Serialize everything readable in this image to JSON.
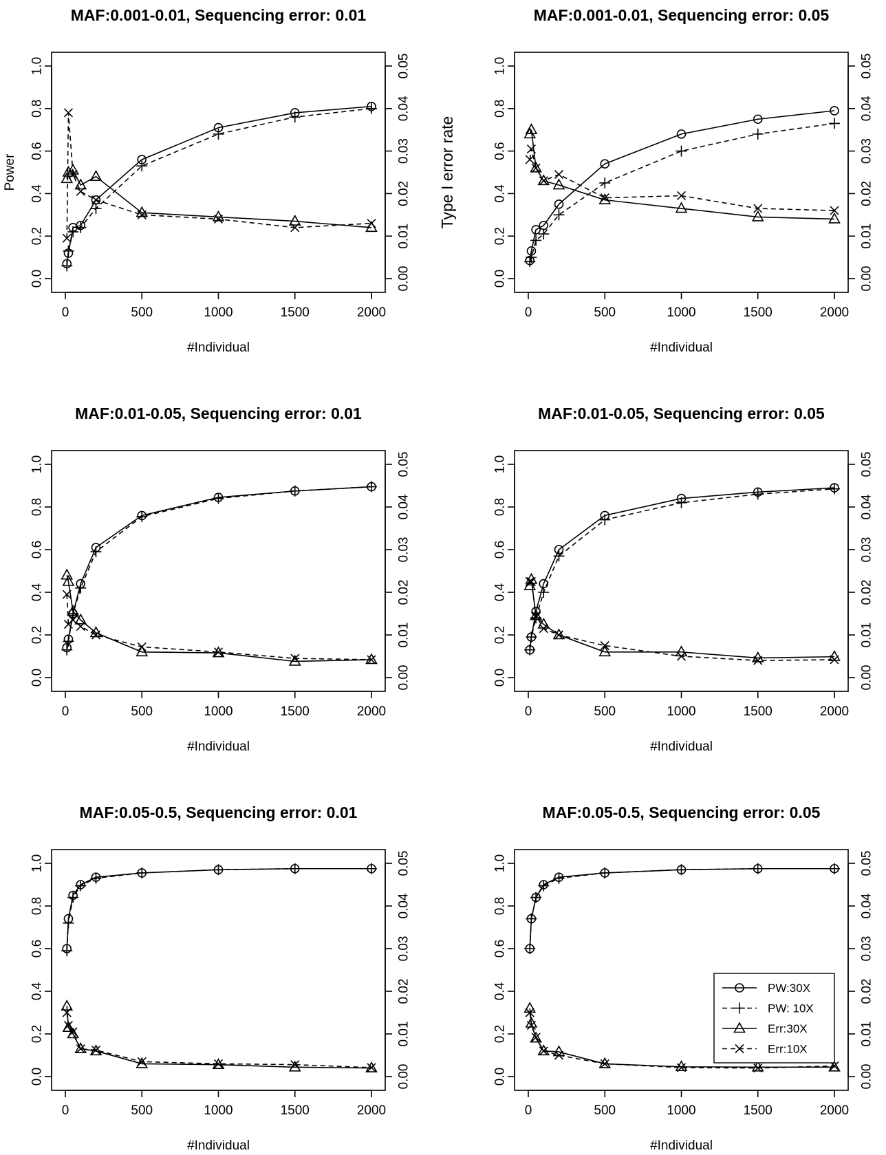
{
  "chart_data": [
    {
      "type": "line",
      "title": "MAF:0.001-0.01, Sequencing error: 0.01",
      "xlabel": "#Individual",
      "ylabel": "Power",
      "y2label": "Type I error rate",
      "x": [
        10,
        20,
        50,
        100,
        200,
        500,
        1000,
        1500,
        2000
      ],
      "xlim": [
        0,
        2000
      ],
      "xticks": [
        0,
        500,
        1000,
        1500,
        2000
      ],
      "ylim": [
        0,
        1
      ],
      "yticks": [
        "0.0",
        "0.2",
        "0.4",
        "0.6",
        "0.8",
        "1.0"
      ],
      "y2lim": [
        0,
        0.05
      ],
      "y2ticks": [
        "0.00",
        "0.01",
        "0.02",
        "0.03",
        "0.04",
        "0.05"
      ],
      "grid": false,
      "series": [
        {
          "name": "PW:30X",
          "axis": "left",
          "marker": "circle",
          "dash": "solid",
          "values": [
            0.07,
            0.12,
            0.24,
            0.25,
            0.37,
            0.56,
            0.71,
            0.78,
            0.81
          ]
        },
        {
          "name": "PW: 10X",
          "axis": "left",
          "marker": "plus",
          "dash": "dashed",
          "values": [
            0.06,
            0.13,
            0.22,
            0.24,
            0.33,
            0.53,
            0.68,
            0.76,
            0.8
          ]
        },
        {
          "name": "Err:30X",
          "axis": "right",
          "marker": "triangle",
          "dash": "solid",
          "values": [
            0.0235,
            0.025,
            0.0255,
            0.022,
            0.024,
            0.0155,
            0.0145,
            0.0135,
            0.012
          ]
        },
        {
          "name": "Err:10X",
          "axis": "right",
          "marker": "x",
          "dash": "dashed",
          "values": [
            0.0095,
            0.039,
            0.0245,
            0.0205,
            0.0185,
            0.015,
            0.014,
            0.012,
            0.013
          ]
        }
      ]
    },
    {
      "type": "line",
      "title": "MAF:0.001-0.01, Sequencing error: 0.05",
      "xlabel": "#Individual",
      "x": [
        10,
        20,
        50,
        100,
        200,
        500,
        1000,
        1500,
        2000
      ],
      "xlim": [
        0,
        2000
      ],
      "xticks": [
        0,
        500,
        1000,
        1500,
        2000
      ],
      "ylim": [
        0,
        1
      ],
      "yticks": [
        "0.0",
        "0.2",
        "0.4",
        "0.6",
        "0.8",
        "1.0"
      ],
      "y2lim": [
        0,
        0.05
      ],
      "y2ticks": [
        "0.00",
        "0.01",
        "0.02",
        "0.03",
        "0.04",
        "0.05"
      ],
      "grid": false,
      "series": [
        {
          "name": "PW:30X",
          "axis": "left",
          "marker": "circle",
          "dash": "solid",
          "values": [
            0.085,
            0.13,
            0.23,
            0.25,
            0.35,
            0.54,
            0.68,
            0.75,
            0.79
          ]
        },
        {
          "name": "PW: 10X",
          "axis": "left",
          "marker": "plus",
          "dash": "dashed",
          "values": [
            0.08,
            0.1,
            0.18,
            0.21,
            0.3,
            0.45,
            0.6,
            0.68,
            0.73
          ]
        },
        {
          "name": "Err:30X",
          "axis": "right",
          "marker": "triangle",
          "dash": "solid",
          "values": [
            0.034,
            0.035,
            0.026,
            0.023,
            0.022,
            0.0185,
            0.0165,
            0.0145,
            0.014
          ]
        },
        {
          "name": "Err:10X",
          "axis": "right",
          "marker": "x",
          "dash": "dashed",
          "values": [
            0.028,
            0.0305,
            0.026,
            0.023,
            0.0245,
            0.019,
            0.0195,
            0.0165,
            0.016
          ]
        }
      ]
    },
    {
      "type": "line",
      "title": "MAF:0.01-0.05, Sequencing error: 0.01",
      "xlabel": "#Individual",
      "x": [
        10,
        20,
        50,
        100,
        200,
        500,
        1000,
        1500,
        2000
      ],
      "xlim": [
        0,
        2000
      ],
      "xticks": [
        0,
        500,
        1000,
        1500,
        2000
      ],
      "ylim": [
        0,
        1
      ],
      "yticks": [
        "0.0",
        "0.2",
        "0.4",
        "0.6",
        "0.8",
        "1.0"
      ],
      "y2lim": [
        0,
        0.05
      ],
      "y2ticks": [
        "0.00",
        "0.01",
        "0.02",
        "0.03",
        "0.04",
        "0.05"
      ],
      "grid": false,
      "series": [
        {
          "name": "PW:30X",
          "axis": "left",
          "marker": "circle",
          "dash": "solid",
          "values": [
            0.14,
            0.18,
            0.3,
            0.44,
            0.61,
            0.76,
            0.845,
            0.875,
            0.895
          ]
        },
        {
          "name": "PW: 10X",
          "axis": "left",
          "marker": "plus",
          "dash": "dashed",
          "values": [
            0.13,
            0.17,
            0.3,
            0.42,
            0.59,
            0.755,
            0.84,
            0.875,
            0.895
          ]
        },
        {
          "name": "Err:30X",
          "axis": "right",
          "marker": "triangle",
          "dash": "solid",
          "values": [
            0.024,
            0.0225,
            0.0155,
            0.0135,
            0.0105,
            0.006,
            0.0058,
            0.0038,
            0.0042
          ]
        },
        {
          "name": "Err:10X",
          "axis": "right",
          "marker": "x",
          "dash": "dashed",
          "values": [
            0.0195,
            0.0125,
            0.0135,
            0.012,
            0.01,
            0.0072,
            0.006,
            0.0045,
            0.0042
          ]
        }
      ]
    },
    {
      "type": "line",
      "title": "MAF:0.01-0.05, Sequencing error: 0.05",
      "xlabel": "#Individual",
      "x": [
        10,
        20,
        50,
        100,
        200,
        500,
        1000,
        1500,
        2000
      ],
      "xlim": [
        0,
        2000
      ],
      "xticks": [
        0,
        500,
        1000,
        1500,
        2000
      ],
      "ylim": [
        0,
        1
      ],
      "yticks": [
        "0.0",
        "0.2",
        "0.4",
        "0.6",
        "0.8",
        "1.0"
      ],
      "y2lim": [
        0,
        0.05
      ],
      "y2ticks": [
        "0.00",
        "0.01",
        "0.02",
        "0.03",
        "0.04",
        "0.05"
      ],
      "grid": false,
      "series": [
        {
          "name": "PW:30X",
          "axis": "left",
          "marker": "circle",
          "dash": "solid",
          "values": [
            0.13,
            0.19,
            0.31,
            0.44,
            0.6,
            0.76,
            0.84,
            0.87,
            0.89
          ]
        },
        {
          "name": "PW: 10X",
          "axis": "left",
          "marker": "plus",
          "dash": "dashed",
          "values": [
            0.13,
            0.19,
            0.28,
            0.4,
            0.57,
            0.74,
            0.82,
            0.86,
            0.885
          ]
        },
        {
          "name": "Err:30X",
          "axis": "right",
          "marker": "triangle",
          "dash": "solid",
          "values": [
            0.0215,
            0.023,
            0.0145,
            0.0125,
            0.01,
            0.006,
            0.006,
            0.0046,
            0.0049
          ]
        },
        {
          "name": "Err:10X",
          "axis": "right",
          "marker": "x",
          "dash": "dashed",
          "values": [
            0.0225,
            0.0225,
            0.0145,
            0.0115,
            0.01,
            0.0075,
            0.005,
            0.004,
            0.0042
          ]
        }
      ]
    },
    {
      "type": "line",
      "title": "MAF:0.05-0.5, Sequencing error: 0.01",
      "xlabel": "#Individual",
      "x": [
        10,
        20,
        50,
        100,
        200,
        500,
        1000,
        1500,
        2000
      ],
      "xlim": [
        0,
        2000
      ],
      "xticks": [
        0,
        500,
        1000,
        1500,
        2000
      ],
      "ylim": [
        0,
        1
      ],
      "yticks": [
        "0.0",
        "0.2",
        "0.4",
        "0.6",
        "0.8",
        "1.0"
      ],
      "y2lim": [
        0,
        0.05
      ],
      "y2ticks": [
        "0.00",
        "0.01",
        "0.02",
        "0.03",
        "0.04",
        "0.05"
      ],
      "grid": false,
      "series": [
        {
          "name": "PW:30X",
          "axis": "left",
          "marker": "circle",
          "dash": "solid",
          "values": [
            0.6,
            0.74,
            0.85,
            0.9,
            0.935,
            0.955,
            0.97,
            0.975,
            0.975
          ]
        },
        {
          "name": "PW: 10X",
          "axis": "left",
          "marker": "plus",
          "dash": "dashed",
          "values": [
            0.59,
            0.72,
            0.84,
            0.895,
            0.93,
            0.955,
            0.97,
            0.975,
            0.975
          ]
        },
        {
          "name": "Err:30X",
          "axis": "right",
          "marker": "triangle",
          "dash": "solid",
          "values": [
            0.0165,
            0.0115,
            0.01,
            0.0065,
            0.006,
            0.003,
            0.0028,
            0.0022,
            0.002
          ]
        },
        {
          "name": "Err:10X",
          "axis": "right",
          "marker": "x",
          "dash": "dashed",
          "values": [
            0.015,
            0.012,
            0.0105,
            0.0065,
            0.0062,
            0.0035,
            0.003,
            0.0028,
            0.0021
          ]
        }
      ]
    },
    {
      "type": "line",
      "title": "MAF:0.05-0.5, Sequencing error: 0.05",
      "xlabel": "#Individual",
      "x": [
        10,
        20,
        50,
        100,
        200,
        500,
        1000,
        1500,
        2000
      ],
      "xlim": [
        0,
        2000
      ],
      "xticks": [
        0,
        500,
        1000,
        1500,
        2000
      ],
      "ylim": [
        0,
        1
      ],
      "yticks": [
        "0.0",
        "0.2",
        "0.4",
        "0.6",
        "0.8",
        "1.0"
      ],
      "y2lim": [
        0,
        0.05
      ],
      "y2ticks": [
        "0.00",
        "0.01",
        "0.02",
        "0.03",
        "0.04",
        "0.05"
      ],
      "grid": false,
      "legend": "bottom-right",
      "series": [
        {
          "name": "PW:30X",
          "axis": "left",
          "marker": "circle",
          "dash": "solid",
          "values": [
            0.6,
            0.74,
            0.84,
            0.9,
            0.935,
            0.955,
            0.97,
            0.975,
            0.975
          ]
        },
        {
          "name": "PW: 10X",
          "axis": "left",
          "marker": "plus",
          "dash": "dashed",
          "values": [
            0.6,
            0.74,
            0.84,
            0.895,
            0.93,
            0.955,
            0.97,
            0.975,
            0.975
          ]
        },
        {
          "name": "Err:30X",
          "axis": "right",
          "marker": "triangle",
          "dash": "solid",
          "values": [
            0.016,
            0.0125,
            0.009,
            0.006,
            0.0058,
            0.003,
            0.0023,
            0.0022,
            0.0022
          ]
        },
        {
          "name": "Err:10X",
          "axis": "right",
          "marker": "x",
          "dash": "dashed",
          "values": [
            0.015,
            0.012,
            0.0092,
            0.006,
            0.005,
            0.003,
            0.0021,
            0.002,
            0.0025
          ]
        }
      ]
    }
  ]
}
